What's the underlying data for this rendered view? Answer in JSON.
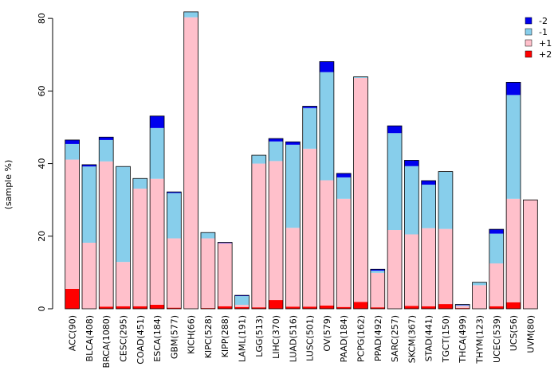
{
  "chart_data": {
    "type": "bar",
    "stacked": true,
    "title": "",
    "xlabel": "",
    "ylabel": "(sample %)",
    "ylim": [
      0,
      82
    ],
    "yticks": [
      0,
      20,
      40,
      60,
      80
    ],
    "grid": false,
    "legend_position": "top-right",
    "categories": [
      "ACC(90)",
      "BLCA(408)",
      "BRCA(1080)",
      "CESC(295)",
      "COAD(451)",
      "ESCA(184)",
      "GBM(577)",
      "KICH(66)",
      "KIPC(528)",
      "KIPP(288)",
      "LAML(191)",
      "LGG(513)",
      "LIHC(370)",
      "LUAD(516)",
      "LUSC(501)",
      "OV(579)",
      "PAAD(184)",
      "PCPG(162)",
      "PPAD(492)",
      "SARC(257)",
      "SKCM(367)",
      "STAD(441)",
      "TGCT(150)",
      "THCA(499)",
      "THYM(123)",
      "UCEC(539)",
      "UCS(56)",
      "UVM(80)"
    ],
    "series": [
      {
        "name": "+2",
        "color": "#ff0000",
        "values": [
          5.5,
          0.0,
          0.6,
          0.7,
          0.7,
          1.1,
          0.3,
          0.0,
          0.2,
          0.7,
          0.5,
          0.4,
          2.4,
          0.6,
          0.6,
          0.9,
          0.5,
          1.9,
          0.4,
          0.0,
          0.8,
          0.7,
          1.3,
          0.2,
          0.0,
          0.7,
          1.8,
          0.0
        ]
      },
      {
        "name": "+1",
        "color": "#ffc0cb",
        "values": [
          35.6,
          18.2,
          40.0,
          12.2,
          32.4,
          34.7,
          19.1,
          80.3,
          19.2,
          17.4,
          0.6,
          39.6,
          38.3,
          21.7,
          43.5,
          34.5,
          29.8,
          61.7,
          9.5,
          21.7,
          19.7,
          21.5,
          20.7,
          0.6,
          6.5,
          11.8,
          28.5,
          30.0
        ]
      },
      {
        "name": "-1",
        "color": "#87ceeb",
        "values": [
          4.3,
          21.0,
          5.9,
          26.3,
          2.8,
          14.0,
          12.5,
          1.5,
          1.6,
          0.0,
          2.4,
          2.3,
          5.4,
          22.9,
          11.2,
          29.8,
          5.9,
          0.3,
          0.6,
          26.7,
          18.8,
          12.0,
          15.8,
          0.2,
          0.8,
          8.2,
          28.6,
          0.0
        ]
      },
      {
        "name": "-2",
        "color": "#0000ee",
        "values": [
          1.1,
          0.5,
          0.8,
          0.0,
          0.0,
          3.3,
          0.3,
          0.0,
          0.0,
          0.2,
          0.2,
          0.0,
          0.8,
          0.8,
          0.5,
          2.9,
          1.1,
          0.0,
          0.4,
          2.0,
          1.6,
          1.1,
          0.0,
          0.2,
          0.0,
          1.2,
          3.5,
          0.0
        ]
      }
    ],
    "legend": [
      {
        "name": "-2",
        "color": "#0000ee"
      },
      {
        "name": "-1",
        "color": "#87ceeb"
      },
      {
        "name": "+1",
        "color": "#ffc0cb"
      },
      {
        "name": "+2",
        "color": "#ff0000"
      }
    ]
  }
}
